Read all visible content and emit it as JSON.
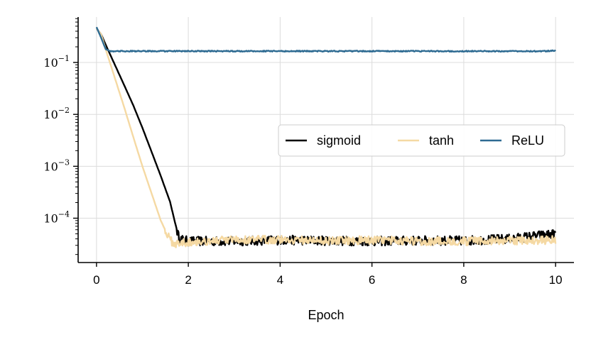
{
  "chart_data": {
    "type": "line",
    "xlabel": "Epoch",
    "ylabel": "",
    "xlim": [
      -0.4,
      10.4
    ],
    "ylim": [
      1.4e-05,
      0.75
    ],
    "yscale": "log",
    "xticks": [
      0,
      2,
      4,
      6,
      8,
      10
    ],
    "xtick_labels": [
      "0",
      "2",
      "4",
      "6",
      "8",
      "10"
    ],
    "yticks": [
      0.1,
      0.01,
      0.001,
      0.0001
    ],
    "ytick_labels": [
      {
        "base": "10",
        "exp": "−1"
      },
      {
        "base": "10",
        "exp": "−2"
      },
      {
        "base": "10",
        "exp": "−3"
      },
      {
        "base": "10",
        "exp": "−4"
      }
    ],
    "grid": true,
    "legend": {
      "placement": "center-right",
      "ncol": 3
    },
    "series": [
      {
        "name": "sigmoid",
        "color": "#000000",
        "x": [
          0,
          0.1,
          0.2,
          0.4,
          0.6,
          0.8,
          1.0,
          1.2,
          1.4,
          1.6,
          1.7,
          1.8,
          2,
          3,
          4,
          5,
          6,
          7,
          8,
          9,
          9.5,
          10
        ],
        "y": [
          0.45,
          0.35,
          0.22,
          0.09,
          0.037,
          0.015,
          0.0055,
          0.0019,
          0.00065,
          0.00021,
          9e-05,
          4e-05,
          3.6e-05,
          3.6e-05,
          3.8e-05,
          3.7e-05,
          3.6e-05,
          3.7e-05,
          3.7e-05,
          4e-05,
          4.5e-05,
          5e-05
        ],
        "noise": 0.18
      },
      {
        "name": "tanh",
        "color": "#f5d9a3",
        "x": [
          0,
          0.1,
          0.2,
          0.4,
          0.6,
          0.8,
          1.0,
          1.2,
          1.4,
          1.6,
          1.7,
          2,
          3,
          4,
          5,
          6,
          7,
          8,
          9,
          10
        ],
        "y": [
          0.45,
          0.35,
          0.18,
          0.05,
          0.014,
          0.0037,
          0.001,
          0.0003,
          9e-05,
          3.8e-05,
          3.2e-05,
          3.5e-05,
          3.8e-05,
          3.9e-05,
          3.7e-05,
          3.8e-05,
          3.6e-05,
          3.6e-05,
          3.7e-05,
          3.8e-05
        ],
        "noise": 0.16
      },
      {
        "name": "ReLU",
        "color": "#2e6b92",
        "x": [
          0,
          0.1,
          0.2,
          0.3,
          1,
          2,
          3,
          4,
          5,
          6,
          7,
          8,
          9,
          9.8,
          10
        ],
        "y": [
          0.48,
          0.3,
          0.18,
          0.165,
          0.165,
          0.165,
          0.165,
          0.165,
          0.165,
          0.165,
          0.165,
          0.165,
          0.165,
          0.165,
          0.17
        ],
        "noise": 0.02
      }
    ]
  }
}
